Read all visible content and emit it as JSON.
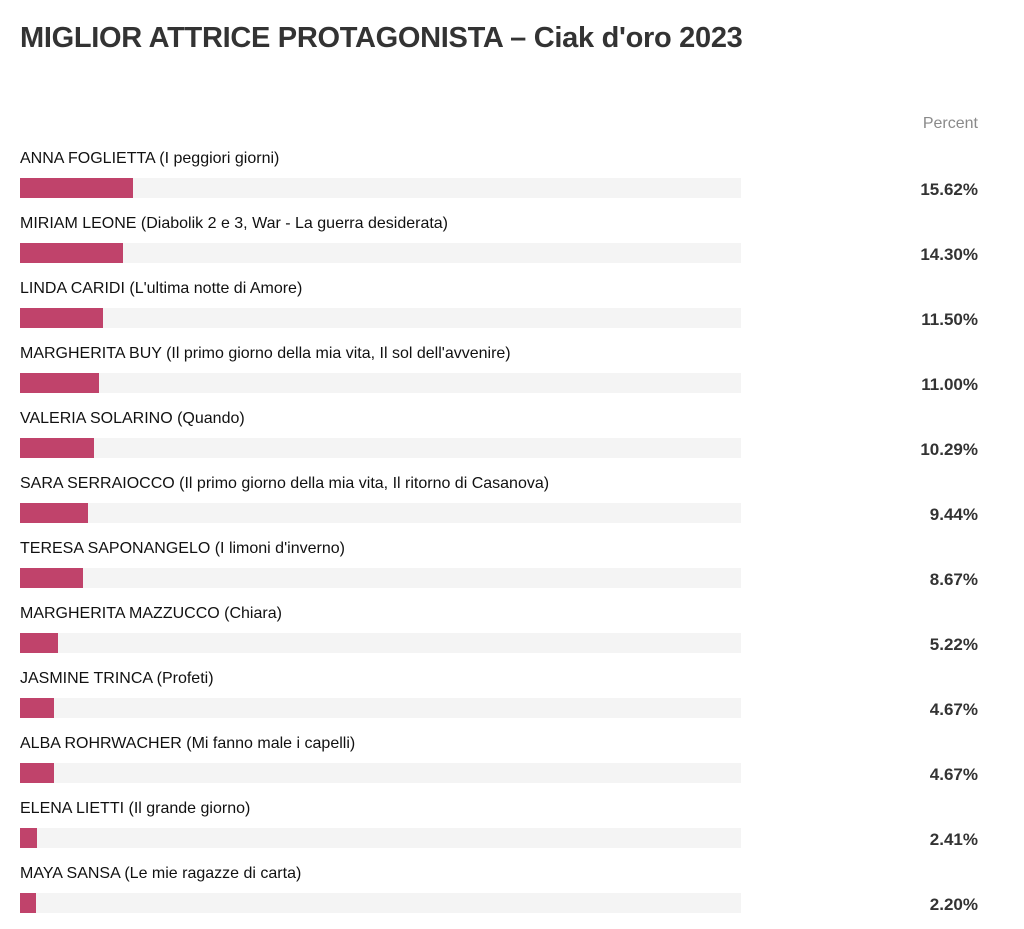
{
  "title": "MIGLIOR ATTRICE PROTAGONISTA – Ciak d'oro 2023",
  "column_header": "Percent",
  "colors": {
    "bar": "#c0436b",
    "track": "#f4f4f4"
  },
  "chart_data": {
    "type": "bar",
    "orientation": "horizontal",
    "title": "MIGLIOR ATTRICE PROTAGONISTA – Ciak d'oro 2023",
    "value_header": "Percent",
    "xlim": [
      0,
      100
    ],
    "grid": false,
    "categories": [
      "ANNA FOGLIETTA (I peggiori giorni)",
      "MIRIAM LEONE (Diabolik 2 e 3, War - La guerra desiderata)",
      "LINDA CARIDI (L'ultima notte di Amore)",
      "MARGHERITA BUY (Il primo giorno della mia vita, Il sol dell'avvenire)",
      "VALERIA SOLARINO (Quando)",
      "SARA SERRAIOCCO (Il primo giorno della mia vita, Il ritorno di Casanova)",
      "TERESA SAPONANGELO (I limoni d'inverno)",
      "MARGHERITA MAZZUCCO (Chiara)",
      "JASMINE TRINCA (Profeti)",
      "ALBA ROHRWACHER (Mi fanno male i capelli)",
      "ELENA LIETTI (Il grande giorno)",
      "MAYA SANSA (Le mie ragazze di carta)"
    ],
    "values": [
      15.62,
      14.3,
      11.5,
      11.0,
      10.29,
      9.44,
      8.67,
      5.22,
      4.67,
      4.67,
      2.41,
      2.2
    ],
    "value_labels": [
      "15.62%",
      "14.30%",
      "11.50%",
      "11.00%",
      "10.29%",
      "9.44%",
      "8.67%",
      "5.22%",
      "4.67%",
      "4.67%",
      "2.41%",
      "2.20%"
    ]
  }
}
